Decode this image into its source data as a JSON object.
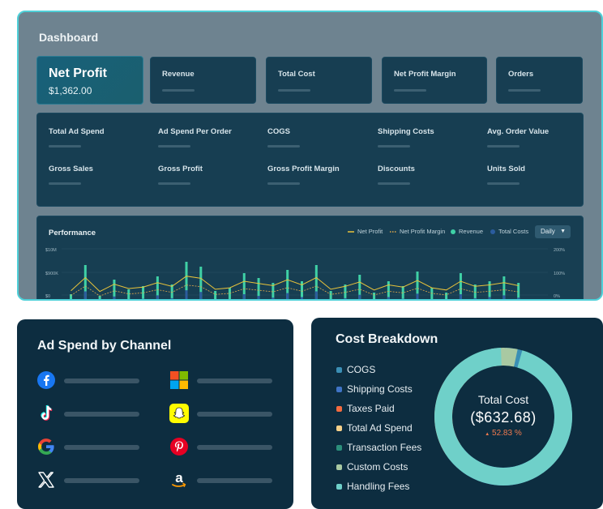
{
  "dashboard": {
    "title": "Dashboard",
    "net_profit": {
      "label": "Net Profit",
      "value": "$1,362.00"
    },
    "kpis": [
      "Revenue",
      "Total Cost",
      "Net Profit Margin",
      "Orders"
    ],
    "grid_metrics": [
      [
        "Total Ad Spend",
        "Ad Spend Per Order",
        "COGS",
        "Shipping Costs",
        "Avg. Order Value"
      ],
      [
        "Gross Sales",
        "Gross Profit",
        "Gross Profit Margin",
        "Discounts",
        "Units Sold"
      ]
    ],
    "performance": {
      "title": "Performance",
      "legend": [
        {
          "label": "Net Profit",
          "color": "#e8c33a",
          "icon": "line"
        },
        {
          "label": "Net Profit Margin",
          "color": "#e0a84a",
          "icon": "dotted"
        },
        {
          "label": "Revenue",
          "color": "#3fd1a6",
          "icon": "dot"
        },
        {
          "label": "Total Costs",
          "color": "#2b5c9e",
          "icon": "dot"
        }
      ],
      "period": "Daily",
      "left_ticks": [
        "$10M",
        "$900K",
        "$0"
      ],
      "right_ticks": [
        "200%",
        "100%",
        "0%"
      ]
    }
  },
  "ad_spend": {
    "title": "Ad Spend by Channel",
    "channels": [
      "facebook-icon",
      "microsoft-icon",
      "tiktok-icon",
      "snapchat-icon",
      "google-icon",
      "pinterest-icon",
      "x-icon",
      "amazon-icon"
    ]
  },
  "cost_breakdown": {
    "title": "Cost Breakdown",
    "items": [
      {
        "label": "COGS",
        "color": "#3b8fb5"
      },
      {
        "label": "Shipping Costs",
        "color": "#3f74c6"
      },
      {
        "label": "Taxes Paid",
        "color": "#f36b3f"
      },
      {
        "label": "Total Ad Spend",
        "color": "#f5d08a"
      },
      {
        "label": "Transaction Fees",
        "color": "#2c8f7b"
      },
      {
        "label": "Custom Costs",
        "color": "#a9c9a2"
      },
      {
        "label": "Handling Fees",
        "color": "#6fd0c9"
      }
    ],
    "total_label": "Total Cost",
    "total_value": "($632.68)",
    "change": "52.83 %",
    "change_color": "#f07a4e"
  }
}
